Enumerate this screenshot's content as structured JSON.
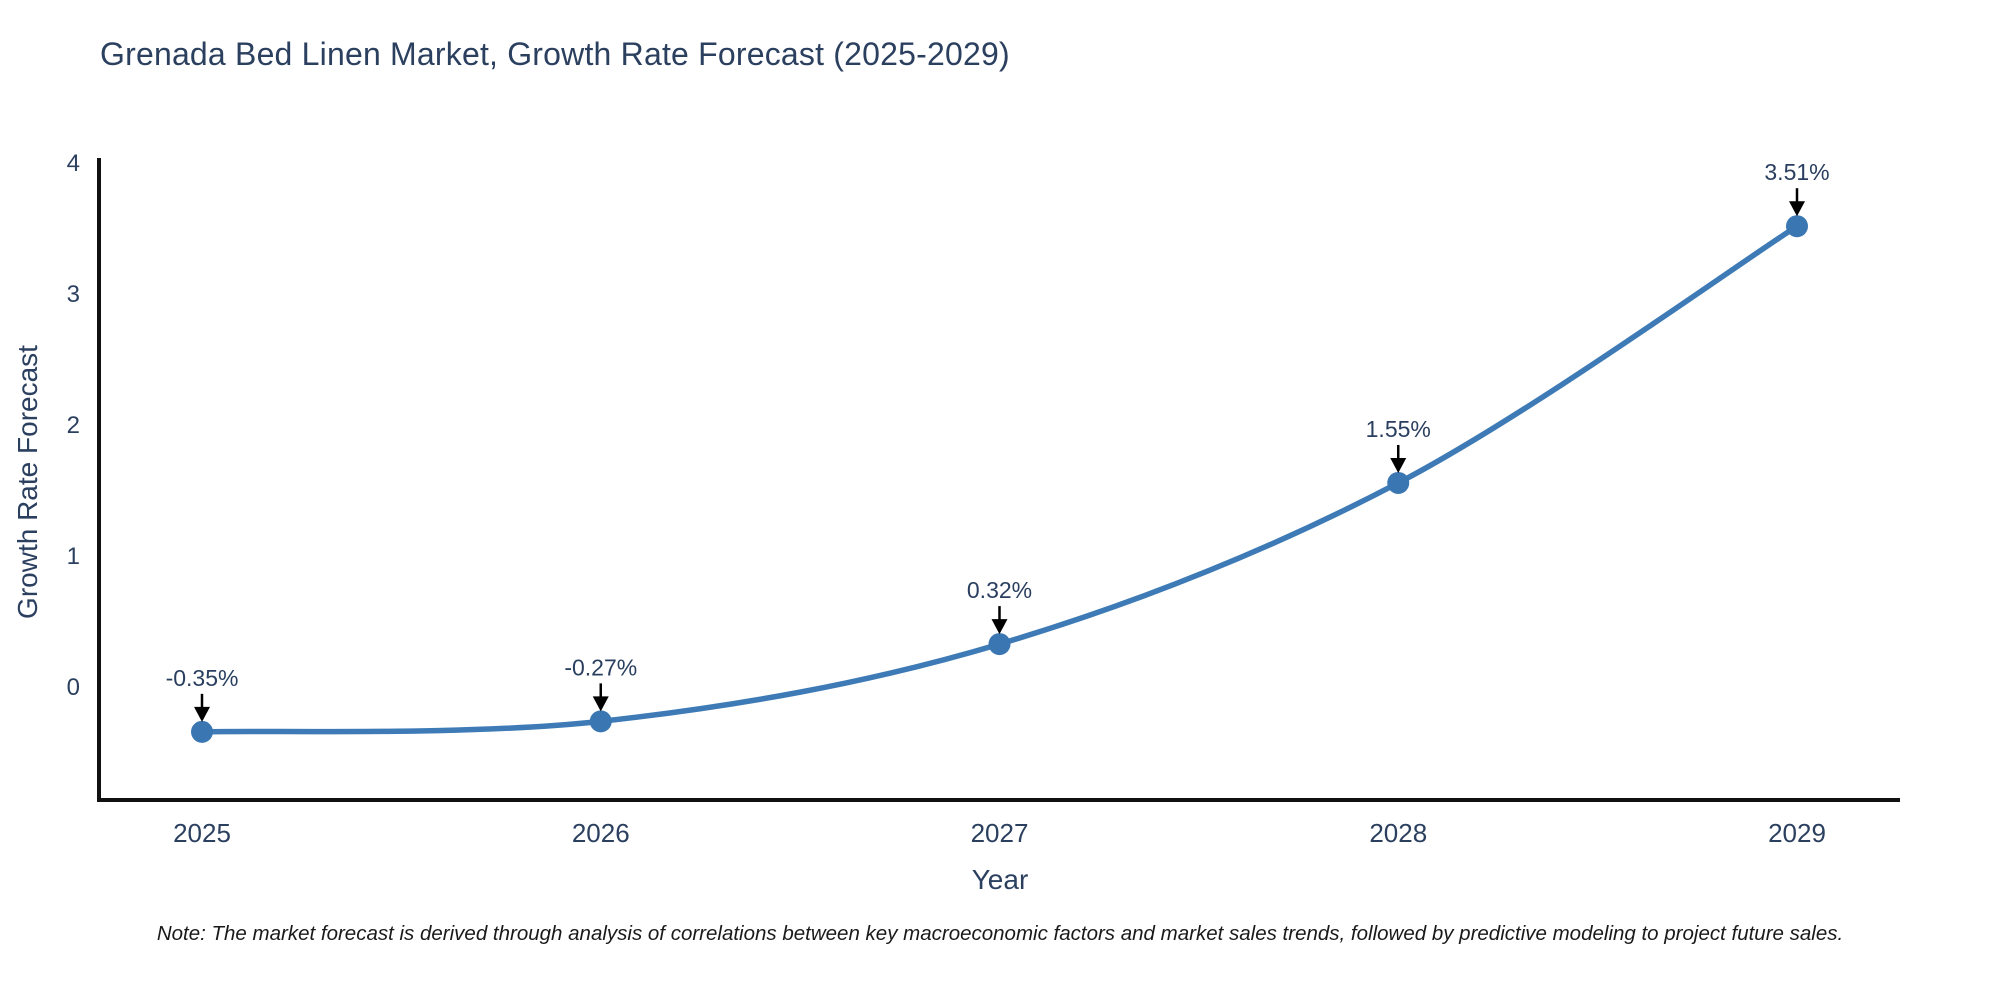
{
  "title": "Grenada Bed Linen Market, Growth Rate Forecast (2025-2029)",
  "note": "Note: The market forecast is derived through analysis of correlations between key macroeconomic factors and market sales trends, followed by predictive modeling to project future sales.",
  "chart_data": {
    "type": "line",
    "title": "Grenada Bed Linen Market, Growth Rate Forecast (2025-2029)",
    "xlabel": "Year",
    "ylabel": "Growth Rate Forecast",
    "categories": [
      "2025",
      "2026",
      "2027",
      "2028",
      "2029"
    ],
    "values": [
      -0.35,
      -0.27,
      0.32,
      1.55,
      3.51
    ],
    "point_labels": [
      "-0.35%",
      "-0.27%",
      "0.32%",
      "1.55%",
      "3.51%"
    ],
    "yticks": [
      0,
      1,
      2,
      3,
      4
    ],
    "ylim": [
      -0.87,
      4.0
    ],
    "grid": false,
    "legend": "none",
    "line_color": "#3e7bb6",
    "marker_color": "#3a76b2",
    "axis_color": "#111111",
    "tick_color": "#2b3f5f",
    "annotation_color": "#2a3f5f",
    "arrow_color": "#000000"
  }
}
